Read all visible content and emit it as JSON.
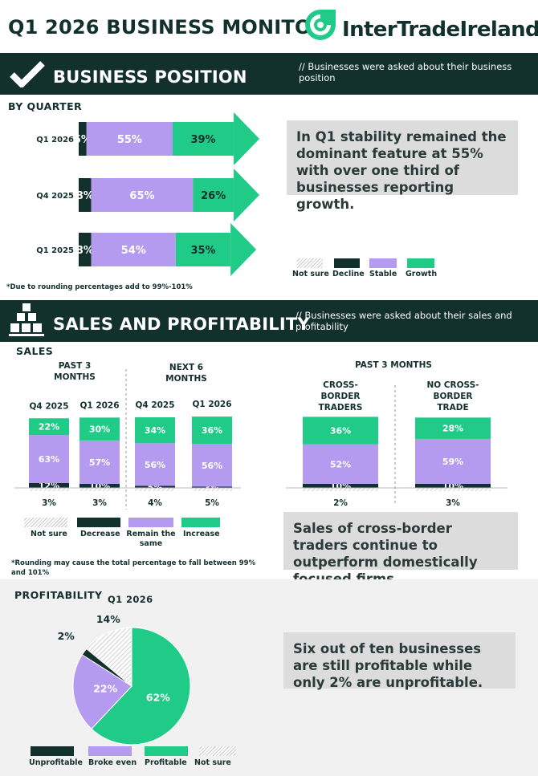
{
  "header": {
    "title": "Q1 2026 BUSINESS MONITOR",
    "brand": "InterTradeIreland"
  },
  "colors": {
    "dark": "#12302c",
    "teal": "#1fcb87",
    "purple": "#b49bf0",
    "light": "#dcdcdc"
  },
  "business_position": {
    "title": "BUSINESS POSITION",
    "note": "// Businesses were asked about their business position",
    "subtitle": "BY QUARTER",
    "footnote": "*Due to rounding percentages add to 99%-101%",
    "callout": "In Q1 stability remained the dominant feature at 55% with over one third of businesses reporting growth.",
    "legend": [
      "Not sure",
      "Decline",
      "Stable",
      "Growth"
    ]
  },
  "sales_profitability": {
    "title": "SALES AND PROFITABILITY",
    "note": "// Businesses were asked about their sales and profitability",
    "sales_title": "SALES",
    "past3": "PAST 3 MONTHS",
    "next6": "NEXT 6 MONTHS",
    "past3_right": "PAST 3  MONTHS",
    "legend": [
      "Not sure",
      "Decrease",
      "Remain the same",
      "Increase"
    ],
    "footnote": "*Rounding may cause the total percentage to fall between 99% and 101%",
    "callout": "Sales of cross-border traders continue to outperform domestically focused firms.",
    "profitability_title": "PROFITABILITY",
    "profitability_quarter": "Q1 2026",
    "profit_callout": "Six out of ten businesses are still profitable while only 2% are unprofitable.",
    "profit_legend": [
      "Unprofitable",
      "Broke even",
      "Profitable",
      "Not sure"
    ]
  },
  "chart_data": [
    {
      "type": "bar",
      "title": "BY QUARTER",
      "orientation": "horizontal-stacked",
      "categories": [
        "Q1 2026",
        "Q4 2025",
        "Q1 2025"
      ],
      "series": [
        {
          "name": "Decline",
          "values": [
            5,
            8,
            8
          ],
          "labels": [
            "5%",
            "8%",
            "8%"
          ]
        },
        {
          "name": "Stable",
          "values": [
            55,
            65,
            54
          ],
          "labels": [
            "55%",
            "65%",
            "54%"
          ]
        },
        {
          "name": "Growth",
          "values": [
            39,
            26,
            35
          ],
          "labels": [
            "39%",
            "26%",
            "35%"
          ]
        }
      ]
    },
    {
      "type": "bar",
      "title": "SALES",
      "orientation": "vertical-stacked",
      "categories": [
        "Q4 2025",
        "Q1 2026",
        "Q4 2025",
        "Q1 2026"
      ],
      "groups": [
        "PAST 3 MONTHS",
        "PAST 3 MONTHS",
        "NEXT 6 MONTHS",
        "NEXT 6 MONTHS"
      ],
      "series": [
        {
          "name": "Not sure",
          "values": [
            3,
            3,
            4,
            5
          ],
          "labels": [
            "3%",
            "3%",
            "4%",
            "5%"
          ]
        },
        {
          "name": "Decrease",
          "values": [
            12,
            10,
            5,
            3
          ],
          "labels": [
            "12%",
            "10%",
            "5%",
            "3%"
          ]
        },
        {
          "name": "Remain the same",
          "values": [
            63,
            57,
            56,
            56
          ],
          "labels": [
            "63%",
            "57%",
            "56%",
            "56%"
          ]
        },
        {
          "name": "Increase",
          "values": [
            22,
            30,
            34,
            36
          ],
          "labels": [
            "22%",
            "30%",
            "34%",
            "36%"
          ]
        }
      ]
    },
    {
      "type": "bar",
      "title": "PAST 3  MONTHS",
      "orientation": "vertical-stacked",
      "categories": [
        "CROSS-BORDER TRADERS",
        "NO CROSS-BORDER TRADE"
      ],
      "series": [
        {
          "name": "Not sure",
          "values": [
            2,
            3
          ],
          "labels": [
            "2%",
            "3%"
          ]
        },
        {
          "name": "Decrease",
          "values": [
            10,
            10
          ],
          "labels": [
            "10%",
            "10%"
          ]
        },
        {
          "name": "Remain the same",
          "values": [
            52,
            59
          ],
          "labels": [
            "52%",
            "59%"
          ]
        },
        {
          "name": "Increase",
          "values": [
            36,
            28
          ],
          "labels": [
            "36%",
            "28%"
          ]
        }
      ]
    },
    {
      "type": "pie",
      "title": "PROFITABILITY",
      "subtitle": "Q1 2026",
      "slices": [
        {
          "name": "Profitable",
          "value": 62,
          "label": "62%"
        },
        {
          "name": "Broke even",
          "value": 22,
          "label": "22%"
        },
        {
          "name": "Unprofitable",
          "value": 2,
          "label": "2%"
        },
        {
          "name": "Not sure",
          "value": 14,
          "label": "14%"
        }
      ]
    }
  ]
}
